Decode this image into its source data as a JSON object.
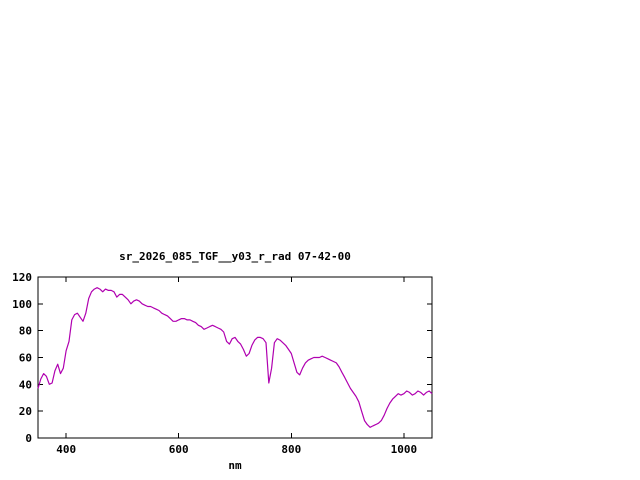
{
  "page": {
    "background": "#ffffff"
  },
  "chart_data": {
    "type": "line",
    "title": "sr_2026_085_TGF__y03_r_rad 07-42-00",
    "xlabel": "nm",
    "ylabel": "",
    "xlim": [
      350,
      1050
    ],
    "ylim": [
      0,
      120
    ],
    "xticks": [
      400,
      600,
      800,
      1000
    ],
    "yticks": [
      0,
      20,
      40,
      60,
      80,
      100,
      120
    ],
    "grid": false,
    "legend": "none",
    "line_color": "#b000b0",
    "axis_color": "#000000",
    "series": [
      {
        "name": "sr_2026_085_TGF__y03_r_rad",
        "x": [
          350,
          355,
          360,
          365,
          370,
          375,
          380,
          385,
          390,
          395,
          400,
          405,
          410,
          415,
          420,
          425,
          430,
          435,
          440,
          445,
          450,
          455,
          460,
          465,
          470,
          475,
          480,
          485,
          490,
          495,
          500,
          505,
          510,
          515,
          520,
          525,
          530,
          535,
          540,
          545,
          550,
          555,
          560,
          565,
          570,
          575,
          580,
          585,
          590,
          595,
          600,
          605,
          610,
          615,
          620,
          625,
          630,
          635,
          640,
          645,
          650,
          655,
          660,
          665,
          670,
          675,
          680,
          685,
          690,
          695,
          700,
          705,
          710,
          715,
          720,
          725,
          730,
          735,
          740,
          745,
          750,
          755,
          760,
          765,
          770,
          775,
          780,
          785,
          790,
          795,
          800,
          805,
          810,
          815,
          820,
          825,
          830,
          835,
          840,
          845,
          850,
          855,
          860,
          865,
          870,
          875,
          880,
          885,
          890,
          895,
          900,
          905,
          910,
          915,
          920,
          925,
          930,
          935,
          940,
          945,
          950,
          955,
          960,
          965,
          970,
          975,
          980,
          985,
          990,
          995,
          1000,
          1005,
          1010,
          1015,
          1020,
          1025,
          1030,
          1035,
          1040,
          1045,
          1050
        ],
        "y": [
          37,
          44,
          48,
          46,
          40,
          41,
          50,
          55,
          48,
          52,
          65,
          72,
          88,
          92,
          93,
          90,
          87,
          93,
          104,
          109,
          111,
          112,
          111,
          109,
          111,
          110,
          110,
          109,
          105,
          107,
          107,
          105,
          103,
          100,
          102,
          103,
          102,
          100,
          99,
          98,
          98,
          97,
          96,
          95,
          93,
          92,
          91,
          89,
          87,
          87,
          88,
          89,
          89,
          88,
          88,
          87,
          86,
          84,
          83,
          81,
          82,
          83,
          84,
          83,
          82,
          81,
          79,
          72,
          70,
          74,
          75,
          72,
          70,
          66,
          61,
          63,
          69,
          73,
          75,
          75,
          74,
          71,
          41,
          52,
          71,
          74,
          73,
          71,
          69,
          66,
          63,
          56,
          49,
          47,
          52,
          56,
          58,
          59,
          60,
          60,
          60,
          61,
          60,
          59,
          58,
          57,
          56,
          53,
          49,
          45,
          41,
          37,
          34,
          31,
          27,
          20,
          13,
          10,
          8,
          9,
          10,
          11,
          13,
          17,
          22,
          26,
          29,
          31,
          33,
          32,
          33,
          35,
          34,
          32,
          33,
          35,
          34,
          32,
          34,
          35,
          33
        ]
      }
    ]
  }
}
